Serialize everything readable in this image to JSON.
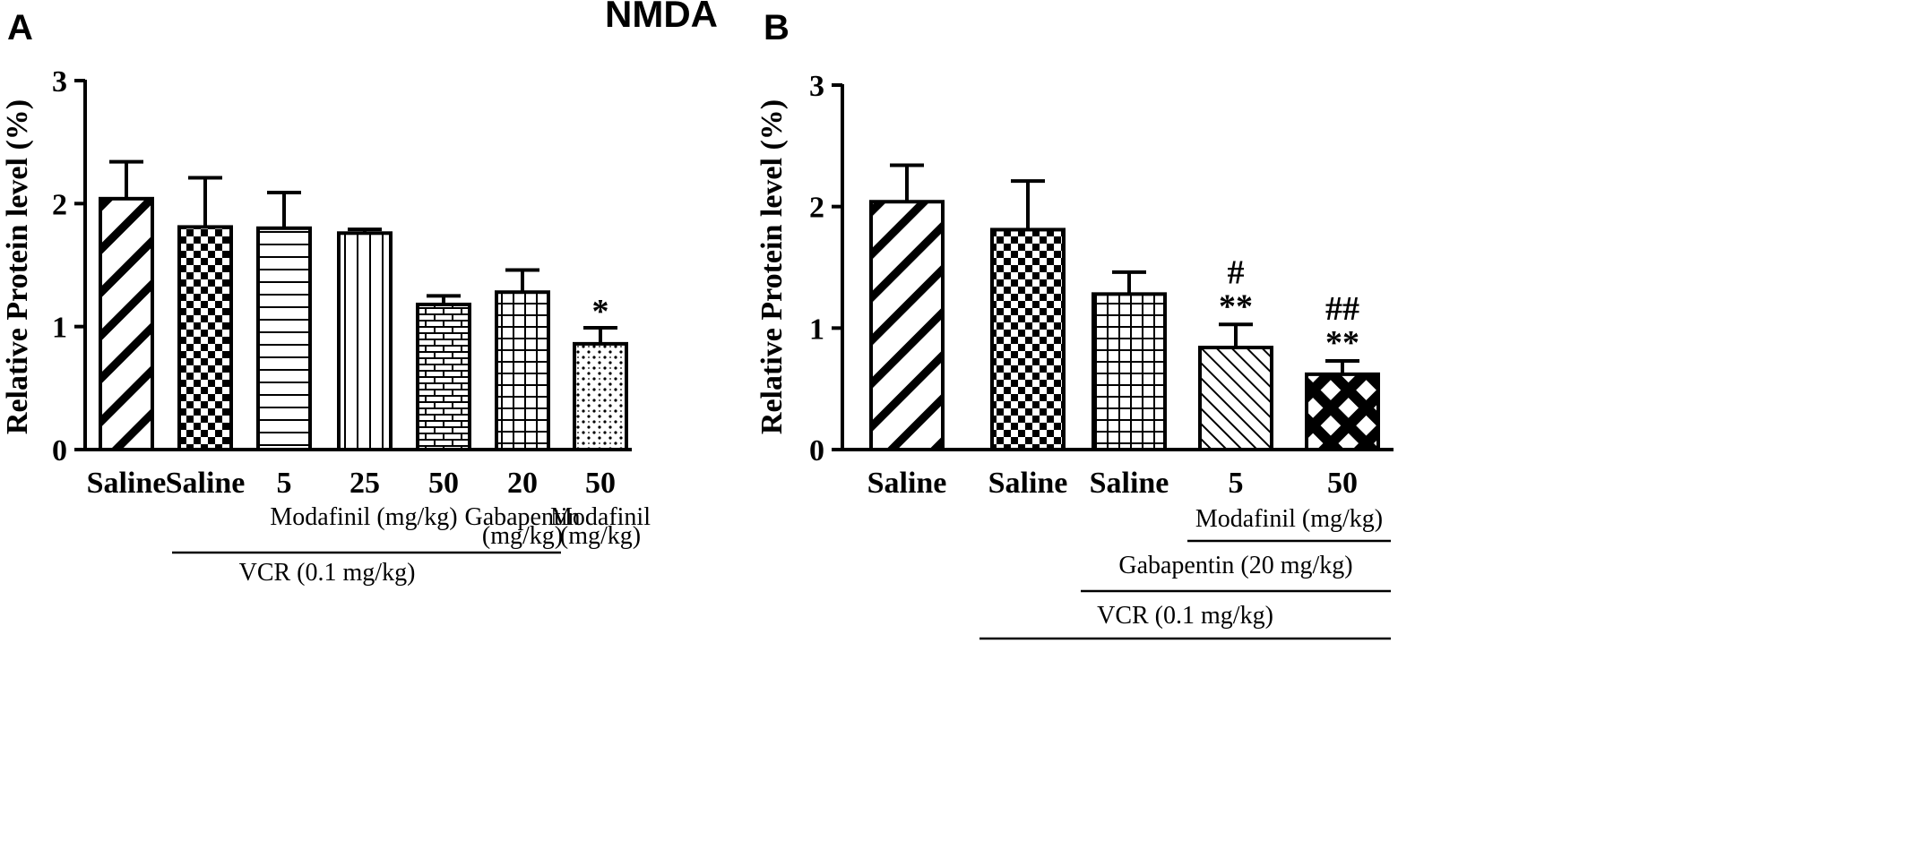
{
  "figure_title": "NMDA",
  "chart_data": [
    {
      "type": "bar",
      "panel": "A",
      "ylabel": "Relative Protein level (%)",
      "ylim": [
        0,
        3
      ],
      "yticks": [
        "0",
        "1",
        "2",
        "3"
      ],
      "categories": [
        "Saline",
        "Saline",
        "5",
        "25",
        "50",
        "20",
        "50"
      ],
      "values": [
        2.04,
        1.81,
        1.8,
        1.76,
        1.18,
        1.28,
        0.86
      ],
      "errors": [
        0.3,
        0.4,
        0.29,
        0.03,
        0.07,
        0.18,
        0.13
      ],
      "patterns": [
        "diag-thick",
        "checker",
        "hlines",
        "vlines",
        "brick",
        "grid",
        "dots"
      ],
      "annotations": [
        "",
        "",
        "",
        "",
        "",
        "",
        "*"
      ],
      "group_labels": [
        {
          "text": "Modafinil (mg/kg)",
          "from": 2,
          "to": 4,
          "underline": false,
          "level": 1
        },
        {
          "text": "Gabapentin",
          "from": 5,
          "to": 5,
          "underline": false,
          "level": 1
        },
        {
          "text": "(mg/kg)",
          "from": 5,
          "to": 5,
          "underline": false,
          "level": 2
        },
        {
          "text": "Modafinil",
          "from": 6,
          "to": 6,
          "underline": false,
          "level": 1
        },
        {
          "text": "(mg/kg)",
          "from": 6,
          "to": 6,
          "underline": false,
          "level": 2
        },
        {
          "text": "VCR (0.1 mg/kg)",
          "from": 1,
          "to": 5,
          "underline": true,
          "level": 3
        }
      ]
    },
    {
      "type": "bar",
      "panel": "B",
      "ylabel": "Relative Protein level (%)",
      "ylim": [
        0,
        3
      ],
      "yticks": [
        "0",
        "1",
        "2",
        "3"
      ],
      "categories": [
        "Saline",
        "Saline",
        "Saline",
        "5",
        "50"
      ],
      "values": [
        2.04,
        1.81,
        1.28,
        0.84,
        0.62
      ],
      "errors": [
        0.3,
        0.4,
        0.18,
        0.19,
        0.11
      ],
      "patterns": [
        "diag-thick",
        "checker",
        "grid",
        "diag-thin",
        "crosshatch"
      ],
      "annotations": [
        [
          "",
          ""
        ],
        [
          "",
          ""
        ],
        [
          "",
          ""
        ],
        [
          "#",
          "**"
        ],
        [
          "##",
          "**"
        ]
      ],
      "group_labels": [
        {
          "text": "Modafinil (mg/kg)",
          "from": 3,
          "to": 4,
          "underline": true,
          "level": 1
        },
        {
          "text": "Gabapentin (20 mg/kg)",
          "from": 2,
          "to": 4,
          "underline": true,
          "level": 2
        },
        {
          "text": "VCR (0.1 mg/kg)",
          "from": 1,
          "to": 4,
          "underline": true,
          "level": 3
        }
      ]
    }
  ]
}
